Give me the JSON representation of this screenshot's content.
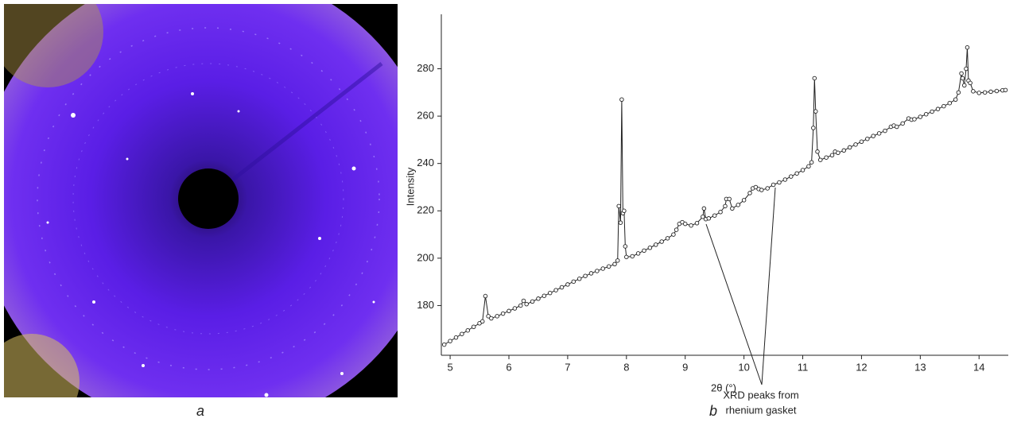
{
  "image_label": "a",
  "chart_data": {
    "type": "line",
    "panel_label": "b",
    "xlabel": "2θ (°)",
    "ylabel": "Intensity",
    "annotation": [
      "XRD peaks from",
      "rhenium gasket"
    ],
    "color": "#222222",
    "markers": true,
    "xlim": [
      4.85,
      14.45
    ],
    "ylim": [
      159,
      303
    ],
    "xticks": [
      5,
      6,
      7,
      8,
      9,
      10,
      11,
      12,
      13,
      14
    ],
    "yticks": [
      180,
      200,
      220,
      240,
      260,
      280
    ],
    "x": [
      4.9,
      5.0,
      5.1,
      5.2,
      5.3,
      5.4,
      5.5,
      5.55,
      5.6,
      5.65,
      5.7,
      5.8,
      5.9,
      6.0,
      6.1,
      6.2,
      6.25,
      6.3,
      6.4,
      6.5,
      6.6,
      6.7,
      6.8,
      6.9,
      7.0,
      7.1,
      7.2,
      7.3,
      7.4,
      7.5,
      7.6,
      7.7,
      7.8,
      7.85,
      7.87,
      7.9,
      7.92,
      7.94,
      7.96,
      7.98,
      8.0,
      8.1,
      8.2,
      8.3,
      8.4,
      8.5,
      8.6,
      8.7,
      8.8,
      8.85,
      8.9,
      8.95,
      9.0,
      9.1,
      9.2,
      9.3,
      9.32,
      9.35,
      9.4,
      9.5,
      9.6,
      9.68,
      9.7,
      9.75,
      9.8,
      9.9,
      10.0,
      10.1,
      10.15,
      10.2,
      10.25,
      10.3,
      10.4,
      10.5,
      10.6,
      10.7,
      10.8,
      10.9,
      11.0,
      11.1,
      11.15,
      11.18,
      11.2,
      11.22,
      11.25,
      11.3,
      11.4,
      11.5,
      11.55,
      11.6,
      11.7,
      11.8,
      11.9,
      12.0,
      12.1,
      12.2,
      12.3,
      12.4,
      12.5,
      12.55,
      12.6,
      12.7,
      12.8,
      12.85,
      12.9,
      13.0,
      13.1,
      13.2,
      13.3,
      13.4,
      13.5,
      13.6,
      13.65,
      13.7,
      13.72,
      13.75,
      13.78,
      13.8,
      13.82,
      13.85,
      13.9,
      14.0,
      14.1,
      14.2,
      14.3,
      14.4,
      14.45
    ],
    "values": [
      163.5,
      165.0,
      166.5,
      168.0,
      169.5,
      171.0,
      172.5,
      173.3,
      184.0,
      175.5,
      174.6,
      175.5,
      176.6,
      177.7,
      178.8,
      180.0,
      182.0,
      180.6,
      181.7,
      182.9,
      184.1,
      185.3,
      186.5,
      187.7,
      188.9,
      190.1,
      191.3,
      192.5,
      193.6,
      194.6,
      195.6,
      196.5,
      197.5,
      199,
      222,
      215,
      267,
      219,
      220,
      205,
      200.5,
      200.8,
      202.0,
      203.2,
      204.4,
      205.7,
      207.0,
      208.4,
      210.0,
      212,
      214.5,
      215.2,
      214.5,
      213.8,
      214.8,
      217.5,
      221,
      216.5,
      216.8,
      218.0,
      219.5,
      222,
      225,
      225,
      221,
      222.5,
      224.5,
      227.5,
      229.5,
      230.0,
      229.2,
      228.8,
      229.5,
      231.0,
      232.0,
      233.2,
      234.5,
      235.8,
      237.2,
      238.8,
      240.5,
      255,
      276,
      262,
      245,
      241.5,
      242.5,
      243.5,
      245.0,
      244.5,
      245.5,
      246.8,
      248.0,
      249.2,
      250.4,
      251.6,
      252.7,
      253.8,
      255.5,
      256,
      255.5,
      256.9,
      259.0,
      258.5,
      258.7,
      259.7,
      260.8,
      261.9,
      263.0,
      264.2,
      265.5,
      267.0,
      270,
      278,
      276,
      273,
      280,
      289,
      275,
      274,
      270.5,
      269.8,
      270.0,
      270.3,
      270.6,
      270.9,
      271.0
    ]
  }
}
